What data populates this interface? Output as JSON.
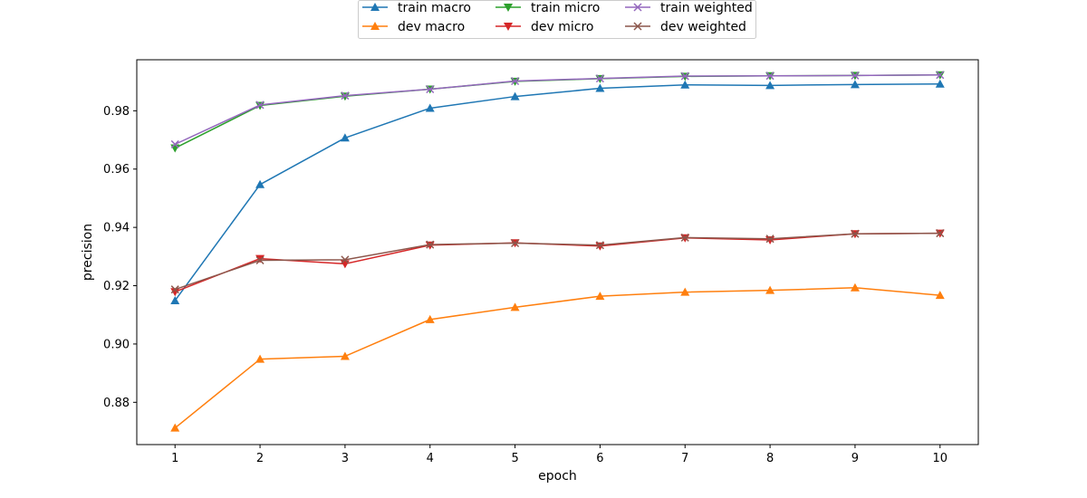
{
  "chart_data": {
    "type": "line",
    "xlabel": "epoch",
    "ylabel": "precision",
    "x": [
      1,
      2,
      3,
      4,
      5,
      6,
      7,
      8,
      9,
      10
    ],
    "xlim": [
      0.55,
      10.45
    ],
    "ylim": [
      0.8655,
      0.9975
    ],
    "xticks": [
      1,
      2,
      3,
      4,
      5,
      6,
      7,
      8,
      9,
      10
    ],
    "yticks": [
      0.88,
      0.9,
      0.92,
      0.94,
      0.96,
      0.98
    ],
    "ytick_labels": [
      "0.88",
      "0.90",
      "0.92",
      "0.94",
      "0.96",
      "0.98"
    ],
    "grid": false,
    "legend_position": "top-center",
    "series": [
      {
        "name": "train macro",
        "color": "#1f77b4",
        "marker": "triangle-up",
        "values": [
          0.9149,
          0.9547,
          0.9707,
          0.9809,
          0.9849,
          0.9877,
          0.9889,
          0.9887,
          0.989,
          0.9892
        ]
      },
      {
        "name": "dev macro",
        "color": "#ff7f0e",
        "marker": "triangle-up",
        "values": [
          0.8712,
          0.8948,
          0.8958,
          0.9084,
          0.9126,
          0.9164,
          0.9178,
          0.9184,
          0.9193,
          0.9167
        ]
      },
      {
        "name": "train micro",
        "color": "#2ca02c",
        "marker": "triangle-down",
        "values": [
          0.9672,
          0.9818,
          0.985,
          0.9874,
          0.9901,
          0.991,
          0.9918,
          0.992,
          0.9921,
          0.9923
        ]
      },
      {
        "name": "dev micro",
        "color": "#d62728",
        "marker": "triangle-down",
        "values": [
          0.9179,
          0.9293,
          0.9275,
          0.9339,
          0.9347,
          0.9336,
          0.9364,
          0.9357,
          0.9378,
          0.938
        ]
      },
      {
        "name": "train weighted",
        "color": "#9467bd",
        "marker": "x",
        "values": [
          0.9685,
          0.982,
          0.9852,
          0.9874,
          0.9902,
          0.9911,
          0.9919,
          0.992,
          0.9921,
          0.9923
        ]
      },
      {
        "name": "dev weighted",
        "color": "#8c564b",
        "marker": "x",
        "values": [
          0.9187,
          0.9287,
          0.9289,
          0.9341,
          0.9346,
          0.9339,
          0.9365,
          0.9361,
          0.9378,
          0.938
        ]
      }
    ]
  }
}
